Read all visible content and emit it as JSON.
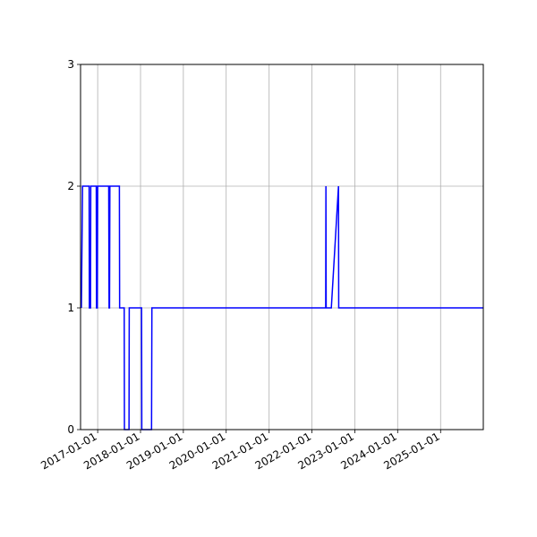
{
  "chart_data": {
    "type": "line",
    "title": "",
    "xlabel": "",
    "ylabel": "",
    "xlim": [
      "2016-08-08",
      "2025-12-31"
    ],
    "ylim": [
      0,
      3
    ],
    "grid": true,
    "legend": "none",
    "x_ticks": [
      "2017-01-01",
      "2018-01-01",
      "2019-01-01",
      "2020-01-01",
      "2021-01-01",
      "2022-01-01",
      "2023-01-01",
      "2024-01-01",
      "2025-01-01"
    ],
    "y_ticks": [
      "0",
      "1",
      "2",
      "3"
    ],
    "series": [
      {
        "color": "#0000ff",
        "points": [
          [
            "2016-08-15",
            1
          ],
          [
            "2016-08-25",
            2
          ],
          [
            "2016-10-20",
            2
          ],
          [
            "2016-10-22",
            1
          ],
          [
            "2016-11-01",
            1
          ],
          [
            "2016-11-03",
            2
          ],
          [
            "2016-12-20",
            2
          ],
          [
            "2016-12-22",
            1
          ],
          [
            "2016-12-29",
            1
          ],
          [
            "2017-01-01",
            2
          ],
          [
            "2017-04-05",
            2
          ],
          [
            "2017-04-08",
            1
          ],
          [
            "2017-04-12",
            1
          ],
          [
            "2017-04-15",
            2
          ],
          [
            "2017-07-05",
            2
          ],
          [
            "2017-07-07",
            1
          ],
          [
            "2017-08-15",
            1
          ],
          [
            "2017-08-17",
            0
          ],
          [
            "2017-09-25",
            0
          ],
          [
            "2017-09-27",
            1
          ],
          [
            "2018-01-10",
            1
          ],
          [
            "2018-01-12",
            0
          ],
          [
            "2018-04-05",
            0
          ],
          [
            "2018-04-08",
            1
          ],
          [
            "2022-04-28",
            1
          ],
          [
            "2022-04-30",
            2
          ],
          [
            "2022-05-02",
            1
          ],
          [
            "2022-06-15",
            1
          ],
          [
            "2022-08-15",
            2
          ],
          [
            "2022-08-17",
            1
          ],
          [
            "2025-12-31",
            1
          ]
        ]
      }
    ]
  }
}
